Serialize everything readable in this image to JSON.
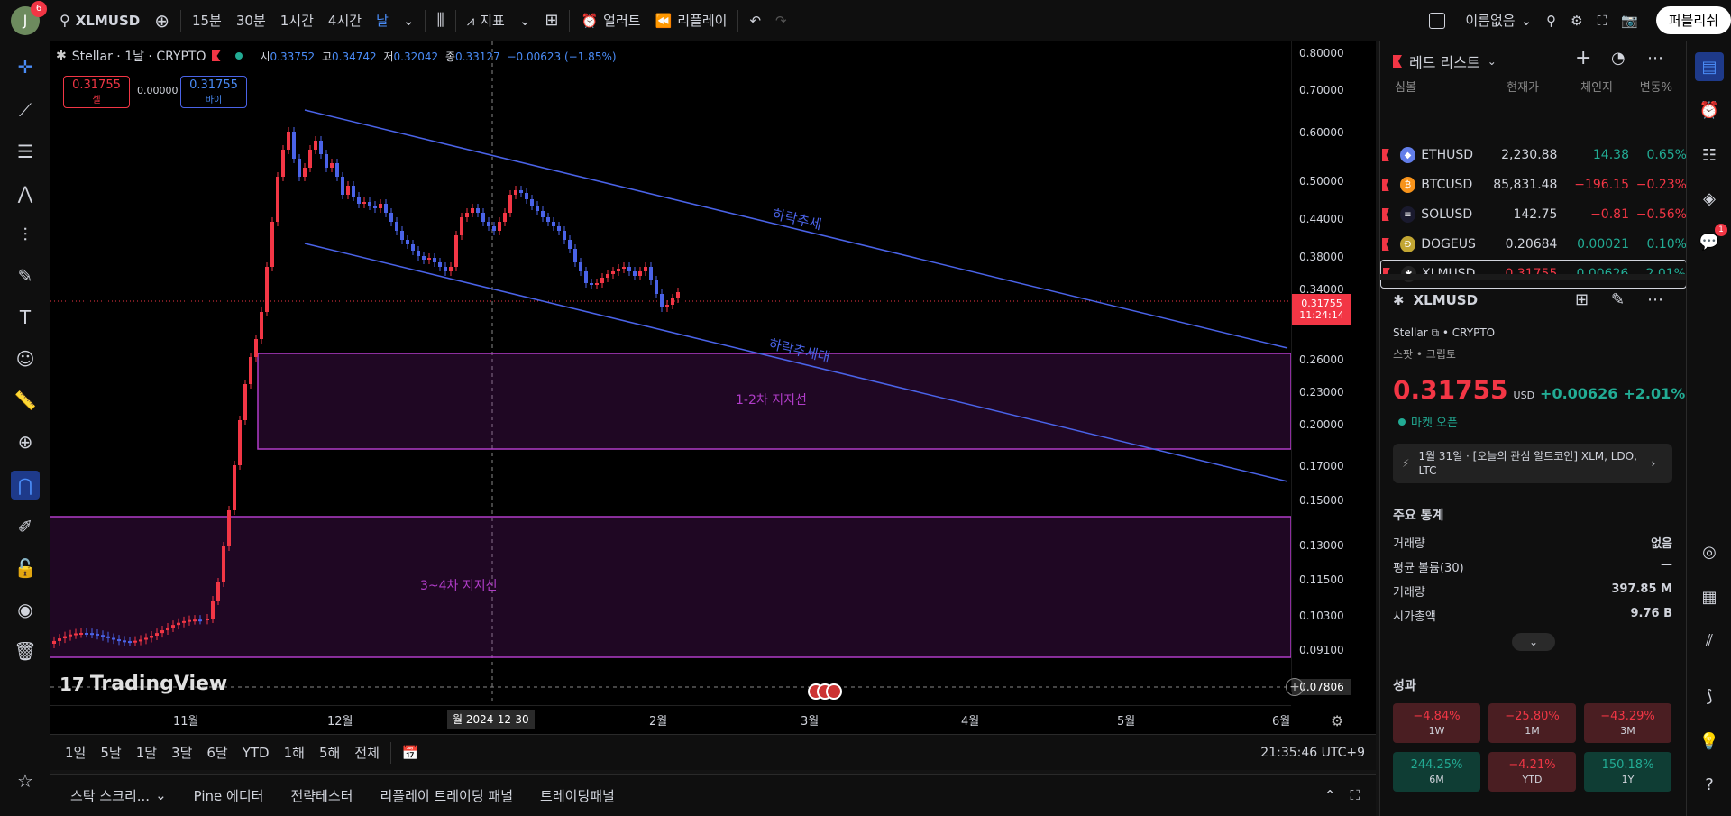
{
  "topbar": {
    "avatar_letter": "J",
    "notif_count": "6",
    "symbol": "XLMUSD",
    "intervals": [
      "15분",
      "30분",
      "1시간",
      "4시간",
      "날"
    ],
    "indicators": "지표",
    "alerts": "얼러트",
    "replay": "리플레이",
    "layout_name": "이름없음",
    "publish": "퍼블리쉬"
  },
  "legend": {
    "title": "Stellar · 1날 · CRYPTO",
    "o_label": "시",
    "o_value": "0.33752",
    "h_label": "고",
    "h_value": "0.34742",
    "l_label": "저",
    "l_value": "0.32042",
    "c_label": "종",
    "c_value": "0.33127",
    "change": "−0.00623 (−1.85%)",
    "sell_price": "0.31755",
    "sell_label": "셀",
    "spread": "0.00000",
    "buy_price": "0.31755",
    "buy_label": "바이"
  },
  "annotations": {
    "downtrend1": "하락추세",
    "downtrend2": "하락추세대",
    "zone1": "1-2차 지지선",
    "zone2": "3~4차 지지선",
    "watermark": "TradingView"
  },
  "price_axis": {
    "labels": [
      "0.80000",
      "0.70000",
      "0.60000",
      "0.50000",
      "0.44000",
      "0.38000",
      "0.34000",
      "0.26000",
      "0.23000",
      "0.20000",
      "0.17000",
      "0.15000",
      "0.13000",
      "0.11500",
      "0.10300",
      "0.09100",
      "0.08100"
    ],
    "current_price": "0.31755",
    "countdown": "11:24:14",
    "crosshair_price": "0.07806"
  },
  "time_axis": {
    "labels": [
      "11월",
      "12월",
      "2월",
      "3월",
      "4월",
      "5월",
      "6월"
    ],
    "crosshair_date": "월 2024-12-30"
  },
  "bottom_tf": {
    "ranges": [
      "1일",
      "5날",
      "1달",
      "3달",
      "6달",
      "YTD",
      "1해",
      "5해",
      "전체"
    ],
    "clock": "21:35:46 UTC+9"
  },
  "bottom_tabs": [
    "스탁 스크리...",
    "Pine 에디터",
    "전략테스터",
    "리플레이 트레이딩 패널",
    "트레이딩패널"
  ],
  "watchlist": {
    "title": "레드 리스트",
    "cols": [
      "심볼",
      "현재가",
      "체인지",
      "변동%"
    ],
    "rows": [
      {
        "sym": "ETHUSD",
        "price": "2,230.88",
        "chg": "14.38",
        "pct": "0.65%",
        "dir": "pos",
        "coin_color": "#627eea",
        "coin": "◆"
      },
      {
        "sym": "BTCUSD",
        "price": "85,831.48",
        "chg": "−196.15",
        "pct": "−0.23%",
        "dir": "neg",
        "coin_color": "#f7931a",
        "coin": "₿"
      },
      {
        "sym": "SOLUSD",
        "price": "142.75",
        "chg": "−0.81",
        "pct": "−0.56%",
        "dir": "neg",
        "coin_color": "#1a1a2e",
        "coin": "≡"
      },
      {
        "sym": "DOGEUS",
        "price": "0.20684",
        "chg": "0.00021",
        "pct": "0.10%",
        "dir": "pos",
        "coin_color": "#c2a633",
        "coin": "Ð"
      },
      {
        "sym": "XLMUSD",
        "price": "0.31755",
        "chg": "0.00626",
        "pct": "2.01%",
        "dir": "pos",
        "coin_color": "#222",
        "coin": "✱"
      }
    ]
  },
  "details": {
    "symbol": "XLMUSD",
    "name": "Stellar",
    "exchange": "CRYPTO",
    "type": "스팟 • 크립토",
    "price": "0.31755",
    "currency": "USD",
    "change": "+0.00626",
    "change_pct": "+2.01%",
    "market_status": "마켓 오픈",
    "news": "1월 31일 · [오늘의 관심 알트코인] XLM, LDO, LTC",
    "stats_title": "주요 통계",
    "stats": [
      {
        "label": "거래량",
        "value": "없음"
      },
      {
        "label": "평균 볼륨(30)",
        "value": "—"
      },
      {
        "label": "거래량",
        "value": "397.85 M"
      },
      {
        "label": "시가총액",
        "value": "9.76 B"
      }
    ],
    "perf_title": "성과",
    "perf": [
      {
        "value": "−4.84%",
        "label": "1W",
        "dir": "neg"
      },
      {
        "value": "−25.80%",
        "label": "1M",
        "dir": "neg"
      },
      {
        "value": "−43.29%",
        "label": "3M",
        "dir": "neg"
      },
      {
        "value": "244.25%",
        "label": "6M",
        "dir": "pos"
      },
      {
        "value": "−4.21%",
        "label": "YTD",
        "dir": "neg"
      },
      {
        "value": "150.18%",
        "label": "1Y",
        "dir": "pos"
      }
    ]
  },
  "right_bar": {
    "notif": "1"
  }
}
